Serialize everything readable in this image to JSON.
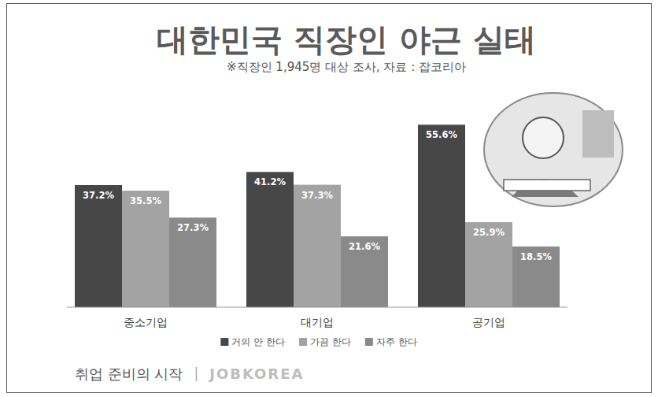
{
  "chart_data": {
    "type": "bar",
    "title": "대한민국 직장인 야근 실태",
    "subtitle": "※직장인 1,945명 대상 조사, 자료 : 잡코리아",
    "categories": [
      "중소기업",
      "대기업",
      "공기업"
    ],
    "series": [
      {
        "name": "거의 안 한다",
        "color": "#474747",
        "values": [
          37.2,
          41.2,
          55.6
        ],
        "value_labels": [
          "37.2%",
          "41.2%",
          "55.6%"
        ]
      },
      {
        "name": "가끔 한다",
        "color": "#a3a3a3",
        "values": [
          35.5,
          37.3,
          25.9
        ],
        "value_labels": [
          "35.5%",
          "37.3%",
          "25.9%"
        ]
      },
      {
        "name": "자주 한다",
        "color": "#8a8a8a",
        "values": [
          27.3,
          21.6,
          18.5
        ],
        "value_labels": [
          "27.3%",
          "21.6%",
          "18.5%"
        ]
      }
    ],
    "ylim": [
      0,
      60
    ],
    "data_labels": true,
    "tick_labels": "x",
    "legend": "bottom"
  },
  "footer": {
    "text": "취업 준비의 시작",
    "separator": "|",
    "brand": "JOBKOREA"
  }
}
